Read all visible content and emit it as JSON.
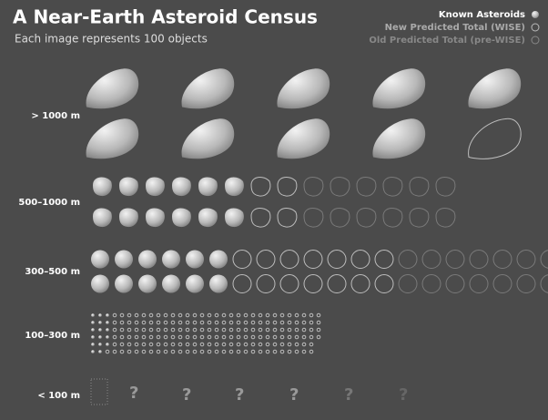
{
  "title": "A Near-Earth Asteroid Census",
  "subtitle": "Each image represents 100 objects",
  "legend": [
    "Known Asteroids",
    "New Predicted Total (WISE)",
    "Old Predicted Total (pre-WISE)"
  ],
  "rows": [
    {
      "label": "> 1000 m",
      "known": 9,
      "new_predicted": 10,
      "old_predicted": 10
    },
    {
      "label": "500–1000 m",
      "known": 12,
      "new_predicted": 16,
      "old_predicted": 28
    },
    {
      "label": "300–500 m",
      "known": 12,
      "new_predicted": 26,
      "old_predicted": 42
    },
    {
      "label": "100–300 m",
      "known": 17,
      "new_predicted": 190,
      "old_predicted": 190
    },
    {
      "label": "< 100 m"
    }
  ]
}
